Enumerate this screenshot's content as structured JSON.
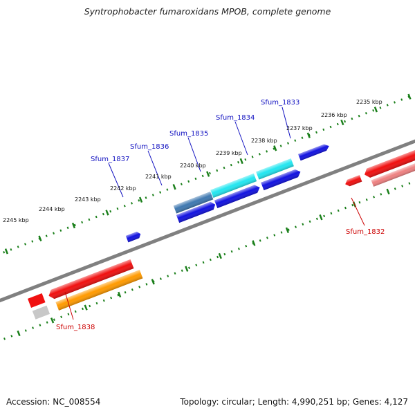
{
  "title": "Syntrophobacter fumaroxidans MPOB, complete genome",
  "footer": {
    "accession": "Accession: NC_008554",
    "summary": "Topology: circular; Length: 4,990,251 bp; Genes: 4,127"
  },
  "scale_labels": [
    "2235 kbp",
    "2236 kbp",
    "2237 kbp",
    "2238 kbp",
    "2239 kbp",
    "2240 kbp",
    "2241 kbp",
    "2242 kbp",
    "2243 kbp",
    "2244 kbp",
    "2245 kbp"
  ],
  "gene_labels": {
    "sfum_1833": "Sfum_1833",
    "sfum_1834": "Sfum_1834",
    "sfum_1835": "Sfum_1835",
    "sfum_1836": "Sfum_1836",
    "sfum_1837": "Sfum_1837",
    "sfum_1832": "Sfum_1832",
    "sfum_1838": "Sfum_1838"
  },
  "colors": {
    "backbone": "#808080",
    "ticks": "#1a7f1a",
    "forward_label": "#1010c0",
    "reverse_label": "#cc0000",
    "blue": "#1212e0",
    "cyan": "#22e6f0",
    "steelblue": "#3f78b0",
    "red": "#f01010",
    "pink": "#ee8080",
    "orange": "#ff9a00",
    "gray": "#c8c8c8"
  }
}
